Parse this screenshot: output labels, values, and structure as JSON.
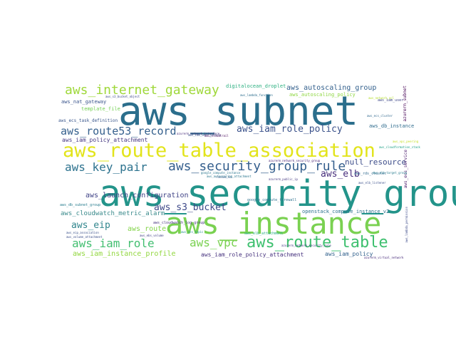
{
  "words": [
    {
      "text": "aws_subnet",
      "color": "#2b6e8c"
    },
    {
      "text": "aws_security_group",
      "color": "#23948a"
    },
    {
      "text": "aws_instance",
      "color": "#7ad151"
    },
    {
      "text": "aws_route_table_association",
      "color": "#e2e41b"
    },
    {
      "text": "aws_internet_gateway",
      "color": "#9fd83a"
    },
    {
      "text": "aws_security_group_rule",
      "color": "#355f8d"
    },
    {
      "text": "aws_route53_record",
      "color": "#35608d"
    },
    {
      "text": "aws_iam_role_policy",
      "color": "#3b528b"
    },
    {
      "text": "aws_route_table",
      "color": "#3ec06f"
    },
    {
      "text": "aws_key_pair",
      "color": "#2c728e"
    },
    {
      "text": "aws_iam_role",
      "color": "#43bf71"
    },
    {
      "text": "aws_s3_bucket",
      "color": "#3e4989"
    },
    {
      "text": "aws_elb",
      "color": "#472e7c"
    },
    {
      "text": "aws_vpc",
      "color": "#7ad151"
    },
    {
      "text": "aws_eip",
      "color": "#31868d"
    },
    {
      "text": "null_resource",
      "color": "#3d4d8a"
    },
    {
      "text": "aws_launch_configuration",
      "color": "#414487"
    },
    {
      "text": "aws_cloudwatch_metric_alarm",
      "color": "#3b8b8c"
    },
    {
      "text": "aws_iam_instance_profile",
      "color": "#93d741"
    },
    {
      "text": "aws_iam_role_policy_attachment",
      "color": "#46327e"
    },
    {
      "text": "aws_iam_policy",
      "color": "#33628d"
    },
    {
      "text": "aws_route",
      "color": "#84d44b"
    },
    {
      "text": "aws_autoscaling_group",
      "color": "#34618d"
    },
    {
      "text": "aws_autoscaling_policy",
      "color": "#90d743"
    },
    {
      "text": "aws_nat_gateway",
      "color": "#3a548c"
    },
    {
      "text": "aws_iam_policy_attachment",
      "color": "#453882"
    },
    {
      "text": "template_file",
      "color": "#75d054"
    },
    {
      "text": "aws_ecs_task_definition",
      "color": "#39568c"
    },
    {
      "text": "digitalocean_droplet",
      "color": "#29af7f"
    },
    {
      "text": "aws_db_instance",
      "color": "#2f6c8e"
    },
    {
      "text": "openstack_compute_instance_v2",
      "color": "#2d718e"
    },
    {
      "text": "aws_rds_cluster",
      "color": "#30698e"
    },
    {
      "text": "aws_db_subnet_group",
      "color": "#287d8e"
    },
    {
      "text": "aws_elb_attachment",
      "color": "#27ad81"
    },
    {
      "text": "aws_cloudwatch_log_group",
      "color": "#46327e"
    },
    {
      "text": "aws_ecs_service",
      "color": "#48186a"
    },
    {
      "text": "azurerm_subnet",
      "color": "#440154"
    },
    {
      "text": "google_compute_firewall",
      "color": "#2d718e"
    },
    {
      "text": "aws_iam_user",
      "color": "#3f4889"
    },
    {
      "text": "aws_s3_bucket_object",
      "color": "#3e4a89"
    },
    {
      "text": "aws_lambda_function",
      "color": "#2e6f8e"
    },
    {
      "text": "azurerm_network_interface",
      "color": "#472d7b"
    },
    {
      "text": "azurerm_network_security_group",
      "color": "#482475"
    },
    {
      "text": "azurerm_public_ip",
      "color": "#453781"
    },
    {
      "text": "google_compute_instance",
      "color": "#2a768e"
    },
    {
      "text": "azurerm_network_security_rule",
      "color": "#443983"
    },
    {
      "text": "aws_ecs_cluster",
      "color": "#31688e"
    },
    {
      "text": "aws_volume_attachment",
      "color": "#3c4f8a"
    },
    {
      "text": "azurerm_virtual_network",
      "color": "#472a7a"
    },
    {
      "text": "aws_elb_listener",
      "color": "#3c508b"
    },
    {
      "text": "random_id",
      "color": "#365c8d"
    },
    {
      "text": "aws_iam_user_policy",
      "color": "#3a538b"
    },
    {
      "text": "aws_ebs_volume",
      "color": "#424086"
    },
    {
      "text": "aws_alb_target_group",
      "color": "#287c8e"
    },
    {
      "text": "aws_cloudformation_stack",
      "color": "#1fa187"
    },
    {
      "text": "aws_lambda_permission",
      "color": "#3e4c8a"
    },
    {
      "text": "aws_cloudtrail",
      "color": "#440256"
    },
    {
      "text": "aws_sns_topic",
      "color": "#20928c"
    },
    {
      "text": "aws_vpc_peering",
      "color": "#c2df23"
    },
    {
      "text": "aws_network_acl",
      "color": "#b5de2b"
    },
    {
      "text": "aws_eip_association",
      "color": "#3b518b"
    },
    {
      "text": "aws_autoscaling_attachment",
      "color": "#2a778e"
    }
  ]
}
